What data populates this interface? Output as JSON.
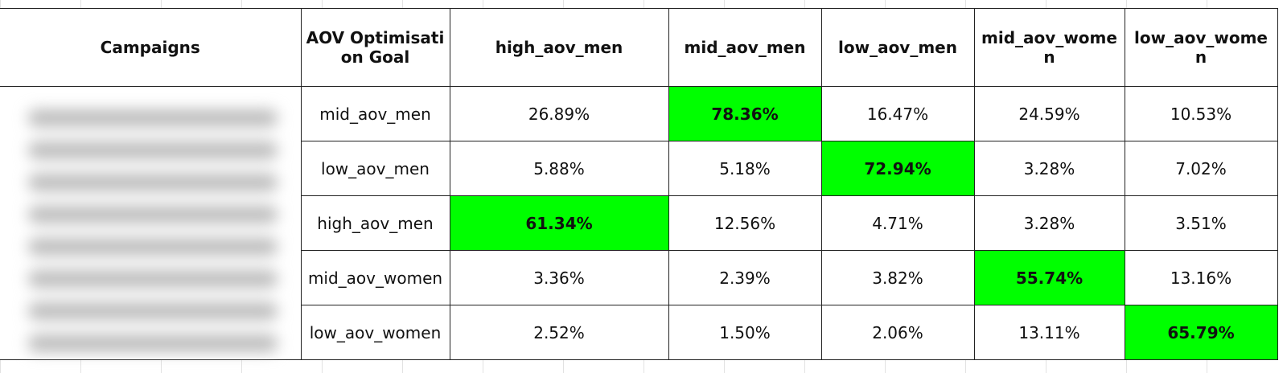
{
  "table": {
    "header": [
      "Campaigns",
      "AOV Optimisation Goal",
      "high_aov_men",
      "mid_aov_men",
      "low_aov_men",
      "mid_aov_women",
      "low_aov_women"
    ],
    "rows": [
      {
        "goal": "mid_aov_men",
        "cells": [
          {
            "text": "26.89%",
            "highlight": false
          },
          {
            "text": "78.36%",
            "highlight": true
          },
          {
            "text": "16.47%",
            "highlight": false
          },
          {
            "text": "24.59%",
            "highlight": false
          },
          {
            "text": "10.53%",
            "highlight": false
          }
        ]
      },
      {
        "goal": "low_aov_men",
        "cells": [
          {
            "text": "5.88%",
            "highlight": false
          },
          {
            "text": "5.18%",
            "highlight": false
          },
          {
            "text": "72.94%",
            "highlight": true
          },
          {
            "text": "3.28%",
            "highlight": false
          },
          {
            "text": "7.02%",
            "highlight": false
          }
        ]
      },
      {
        "goal": "high_aov_men",
        "cells": [
          {
            "text": "61.34%",
            "highlight": true
          },
          {
            "text": "12.56%",
            "highlight": false
          },
          {
            "text": "4.71%",
            "highlight": false
          },
          {
            "text": "3.28%",
            "highlight": false
          },
          {
            "text": "3.51%",
            "highlight": false
          }
        ]
      },
      {
        "goal": "mid_aov_women",
        "cells": [
          {
            "text": "3.36%",
            "highlight": false
          },
          {
            "text": "2.39%",
            "highlight": false
          },
          {
            "text": "3.82%",
            "highlight": false
          },
          {
            "text": "55.74%",
            "highlight": true
          },
          {
            "text": "13.16%",
            "highlight": false
          }
        ]
      },
      {
        "goal": "low_aov_women",
        "cells": [
          {
            "text": "2.52%",
            "highlight": false
          },
          {
            "text": "1.50%",
            "highlight": false
          },
          {
            "text": "2.06%",
            "highlight": false
          },
          {
            "text": "13.11%",
            "highlight": false
          },
          {
            "text": "65.79%",
            "highlight": true
          }
        ]
      }
    ]
  }
}
